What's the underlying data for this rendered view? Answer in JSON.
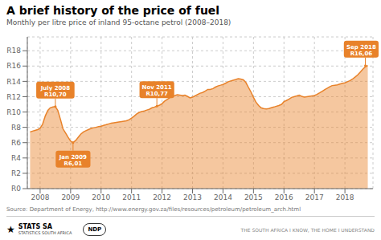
{
  "chart_data": {
    "type": "area",
    "title": "A brief history of the price of fuel",
    "subtitle": "Monthly per litre price of inland 95-octane petrol (2008–2018)",
    "source": "Source: Department of Energy,  http://www.energy.gov.za/files/resources/petroleum/petroleum_arch.html",
    "footer": [
      "★",
      "STATS SA",
      "STATISTICS SOUTH AFRICA",
      "NDP",
      "THE SOUTH AFRICA I KNOW, THE HOME I UNDERSTAND"
    ],
    "color": "#e8822a",
    "grid": true,
    "xlim": [
      2007.58,
      2018.92
    ],
    "ylim": [
      0,
      19.8
    ],
    "xticks": [
      2008,
      2009,
      2010,
      2011,
      2012,
      2013,
      2014,
      2015,
      2016,
      2017,
      2018
    ],
    "yticks": [
      {
        "value": 0,
        "label": "R0"
      },
      {
        "value": 2,
        "label": "R2"
      },
      {
        "value": 4,
        "label": "R4"
      },
      {
        "value": 6,
        "label": "R6"
      },
      {
        "value": 8,
        "label": "R8"
      },
      {
        "value": 10,
        "label": "R10"
      },
      {
        "value": 12,
        "label": "R12"
      },
      {
        "value": 14,
        "label": "R14"
      },
      {
        "value": 16,
        "label": "R16"
      },
      {
        "value": 18,
        "label": "R18"
      }
    ],
    "x": [
      2007.67,
      2007.75,
      2007.83,
      2007.92,
      2008.0,
      2008.08,
      2008.17,
      2008.25,
      2008.33,
      2008.42,
      2008.5,
      2008.58,
      2008.67,
      2008.75,
      2008.83,
      2008.92,
      2009.0,
      2009.08,
      2009.17,
      2009.25,
      2009.33,
      2009.42,
      2009.5,
      2009.58,
      2009.67,
      2009.75,
      2009.83,
      2009.92,
      2010.0,
      2010.08,
      2010.17,
      2010.25,
      2010.33,
      2010.42,
      2010.5,
      2010.58,
      2010.67,
      2010.75,
      2010.83,
      2010.92,
      2011.0,
      2011.08,
      2011.17,
      2011.25,
      2011.33,
      2011.42,
      2011.5,
      2011.58,
      2011.67,
      2011.75,
      2011.83,
      2011.92,
      2012.0,
      2012.08,
      2012.17,
      2012.25,
      2012.33,
      2012.42,
      2012.5,
      2012.58,
      2012.67,
      2012.75,
      2012.83,
      2012.92,
      2013.0,
      2013.08,
      2013.17,
      2013.25,
      2013.33,
      2013.42,
      2013.5,
      2013.58,
      2013.67,
      2013.75,
      2013.83,
      2013.92,
      2014.0,
      2014.08,
      2014.17,
      2014.25,
      2014.33,
      2014.42,
      2014.5,
      2014.58,
      2014.67,
      2014.75,
      2014.83,
      2014.92,
      2015.0,
      2015.08,
      2015.17,
      2015.25,
      2015.33,
      2015.42,
      2015.5,
      2015.58,
      2015.67,
      2015.75,
      2015.83,
      2015.92,
      2016.0,
      2016.08,
      2016.17,
      2016.25,
      2016.33,
      2016.42,
      2016.5,
      2016.58,
      2016.67,
      2016.75,
      2016.83,
      2016.92,
      2017.0,
      2017.08,
      2017.17,
      2017.25,
      2017.33,
      2017.42,
      2017.5,
      2017.58,
      2017.67,
      2017.75,
      2017.83,
      2017.92,
      2018.0,
      2018.08,
      2018.17,
      2018.25,
      2018.33,
      2018.42,
      2018.5,
      2018.58,
      2018.67,
      2018.75
    ],
    "values": [
      7.4,
      7.5,
      7.6,
      7.7,
      7.9,
      8.4,
      9.5,
      10.2,
      10.55,
      10.65,
      10.7,
      10.2,
      9.0,
      7.8,
      7.3,
      6.7,
      6.2,
      6.01,
      6.3,
      6.7,
      7.1,
      7.4,
      7.55,
      7.7,
      7.85,
      7.95,
      8.0,
      8.1,
      8.15,
      8.25,
      8.35,
      8.45,
      8.55,
      8.6,
      8.65,
      8.7,
      8.75,
      8.8,
      8.85,
      9.0,
      9.2,
      9.45,
      9.75,
      9.95,
      10.05,
      10.15,
      10.25,
      10.35,
      10.55,
      10.65,
      10.77,
      10.9,
      11.1,
      11.4,
      11.65,
      11.85,
      12.05,
      12.15,
      12.25,
      12.2,
      12.15,
      12.2,
      12.05,
      11.85,
      11.95,
      12.1,
      12.3,
      12.45,
      12.55,
      12.75,
      12.95,
      12.95,
      13.05,
      13.25,
      13.4,
      13.5,
      13.6,
      13.75,
      13.95,
      14.05,
      14.15,
      14.25,
      14.35,
      14.3,
      14.2,
      13.85,
      13.25,
      12.6,
      11.9,
      11.3,
      10.85,
      10.55,
      10.45,
      10.4,
      10.45,
      10.55,
      10.65,
      10.75,
      10.85,
      11.0,
      11.35,
      11.5,
      11.7,
      11.9,
      12.0,
      12.1,
      12.2,
      12.05,
      11.95,
      12.0,
      12.05,
      12.1,
      12.15,
      12.3,
      12.5,
      12.7,
      12.9,
      13.1,
      13.3,
      13.45,
      13.5,
      13.55,
      13.65,
      13.75,
      13.8,
      13.95,
      14.1,
      14.3,
      14.55,
      14.85,
      15.2,
      15.55,
      15.9,
      16.06
    ],
    "annotations": [
      {
        "text": "July 2008\nR10,70",
        "x": 2008.5,
        "y": 10.7
      },
      {
        "text": "Jan 2009\nR6,01",
        "x": 2009.08,
        "y": 6.01
      },
      {
        "text": "Nov 2011\nR10,77",
        "x": 2011.83,
        "y": 10.77
      },
      {
        "text": "Sep 2018\nR16,06",
        "x": 2018.67,
        "y": 16.06
      }
    ]
  }
}
